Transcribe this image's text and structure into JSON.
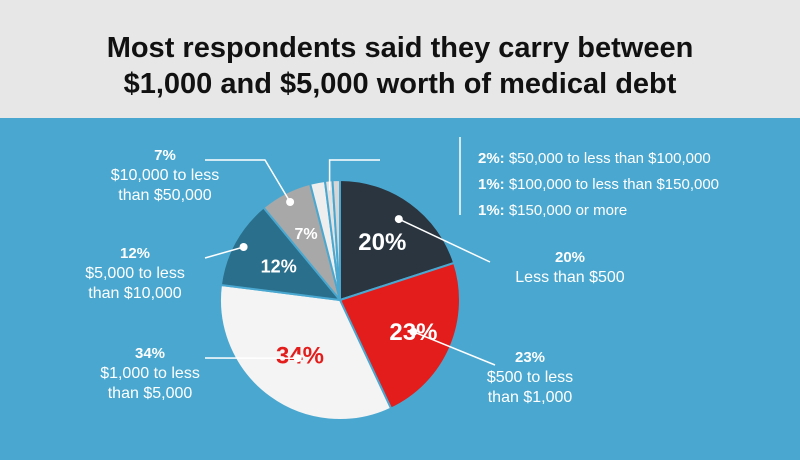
{
  "title": {
    "line1": "Most respondents said they carry between",
    "line2": "$1,000 and $5,000 worth of medical debt"
  },
  "colors": {
    "background": "#4aa8d0",
    "title_band": "#e7e7e7",
    "slice_lt500": "#2a3540",
    "slice_500_1000": "#e31d1b",
    "slice_1000_5000": "#f4f4f4",
    "slice_5000_10000": "#2a6f8c",
    "slice_10000_50000": "#a8a8a8",
    "slice_small": "#eeeeee"
  },
  "chart_data": {
    "type": "pie",
    "title": "Most respondents said they carry between $1,000 and $5,000 worth of medical debt",
    "slices": [
      {
        "label": "Less than $500",
        "value": 20,
        "pct": "20%",
        "label_lines": [
          "Less than $500"
        ],
        "color": "#2a3540",
        "pct_color": "#ffffff",
        "inner_label": "20%"
      },
      {
        "label": "$500 to less than $1,000",
        "value": 23,
        "pct": "23%",
        "label_lines": [
          "$500 to less",
          "than $1,000"
        ],
        "color": "#e31d1b",
        "pct_color": "#ffffff",
        "inner_label": "23%"
      },
      {
        "label": "$1,000 to less than $5,000",
        "value": 34,
        "pct": "34%",
        "label_lines": [
          "$1,000 to less",
          "than $5,000"
        ],
        "color": "#f4f4f4",
        "pct_color": "#e31d1b",
        "inner_label": "34%"
      },
      {
        "label": "$5,000 to less than $10,000",
        "value": 12,
        "pct": "12%",
        "label_lines": [
          "$5,000 to less",
          "than $10,000"
        ],
        "color": "#2a6f8c",
        "pct_color": "#ffffff",
        "inner_label": "12%"
      },
      {
        "label": "$10,000 to less than $50,000",
        "value": 7,
        "pct": "7%",
        "label_lines": [
          "$10,000 to less",
          "than $50,000"
        ],
        "color": "#a8a8a8",
        "pct_color": "#ffffff",
        "inner_label": "7%"
      },
      {
        "label": "$50,000 to less than $100,000",
        "value": 2,
        "pct": "2%:",
        "label_lines": [
          "$50,000 to less than $100,000"
        ],
        "color": "#eeeeee",
        "inner_label": ""
      },
      {
        "label": "$100,000 to less than $150,000",
        "value": 1,
        "pct": "1%:",
        "label_lines": [
          "$100,000 to less than $150,000"
        ],
        "color": "#e2e2e2",
        "inner_label": ""
      },
      {
        "label": "$150,000 or more",
        "value": 1,
        "pct": "1%:",
        "label_lines": [
          "$150,000 or more"
        ],
        "color": "#d6d6d6",
        "inner_label": ""
      }
    ]
  }
}
